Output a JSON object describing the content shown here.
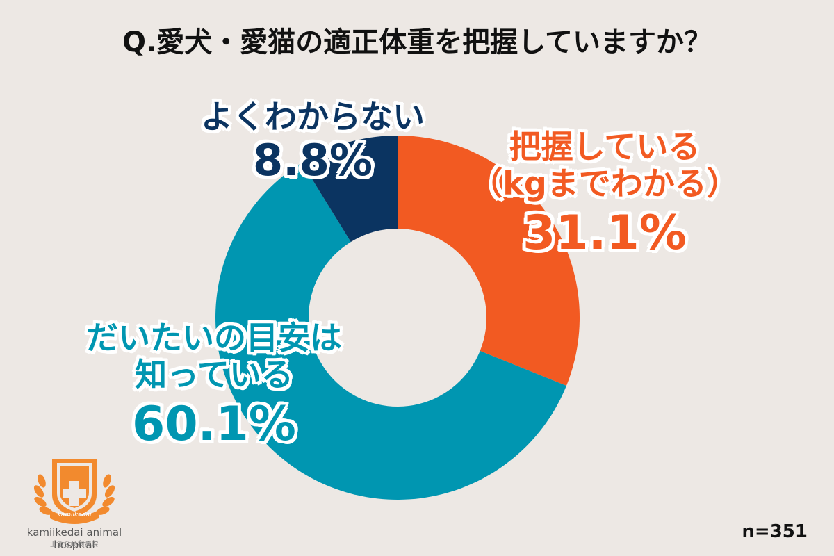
{
  "title": "Q.愛犬・愛猫の適正体重を把握していますか？",
  "sample_size": "n=351",
  "colors": {
    "background": "#ede8e4",
    "knows": "#f25a22",
    "roughly": "#0096b1",
    "unknown": "#0b3461",
    "halo": "#ffffff"
  },
  "chart_data": {
    "type": "pie",
    "donut": true,
    "title": "Q.愛犬・愛猫の適正体重を把握していますか？",
    "note": "n=351",
    "slices": [
      {
        "key": "knows",
        "label_lines": [
          "把握している",
          "（kgまでわかる）"
        ],
        "value": 31.1,
        "value_label": "31.1%"
      },
      {
        "key": "roughly",
        "label_lines": [
          "だいたいの目安は",
          "知っている"
        ],
        "value": 60.1,
        "value_label": "60.1%"
      },
      {
        "key": "unknown",
        "label_lines": [
          "よくわからない"
        ],
        "value": 8.8,
        "value_label": "8.8%"
      }
    ]
  },
  "logo": {
    "badge_text": "kamiikedai",
    "name_en": "kamiikedai animal hospital",
    "name_ja": "上池台動物病院"
  }
}
